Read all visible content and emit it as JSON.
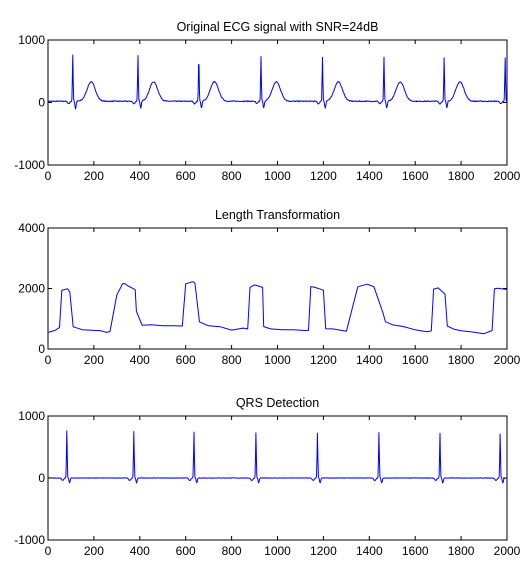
{
  "chart_data": [
    {
      "type": "line",
      "title": "Original ECG signal with SNR=24dB",
      "xlabel": "",
      "ylabel": "",
      "xlim": [
        0,
        2000
      ],
      "ylim": [
        -1000,
        1000
      ],
      "xticks": [
        "0",
        "200",
        "400",
        "600",
        "800",
        "1000",
        "1200",
        "1400",
        "1600",
        "1800",
        "2000"
      ],
      "yticks": [
        "-1000",
        "0",
        "1000"
      ],
      "grid": false,
      "line_color": "#0000ff",
      "baseline": 20,
      "beats": [
        {
          "q": 96,
          "r": 108,
          "r_peak": 760,
          "s_min": -100,
          "t": 188,
          "t_peak": 330
        },
        {
          "q": 388,
          "r": 392,
          "r_peak": 750,
          "s_min": -100,
          "t": 460,
          "t_peak": 330
        },
        {
          "q": 652,
          "r": 657,
          "r_peak": 740,
          "s_min": -90,
          "t": 725,
          "t_peak": 330
        },
        {
          "q": 924,
          "r": 928,
          "r_peak": 730,
          "s_min": -90,
          "t": 995,
          "t_peak": 330
        },
        {
          "q": 1192,
          "r": 1196,
          "r_peak": 720,
          "s_min": -90,
          "t": 1265,
          "t_peak": 330
        },
        {
          "q": 1460,
          "r": 1464,
          "r_peak": 730,
          "s_min": -90,
          "t": 1535,
          "t_peak": 330
        },
        {
          "q": 1722,
          "r": 1726,
          "r_peak": 720,
          "s_min": -90,
          "t": 1795,
          "t_peak": 330
        },
        {
          "q": 1988,
          "r": 1992,
          "r_peak": 710,
          "s_min": -90,
          "t": 2060,
          "t_peak": 330
        }
      ]
    },
    {
      "type": "line",
      "title": "Length Transformation",
      "xlabel": "",
      "ylabel": "",
      "xlim": [
        0,
        2000
      ],
      "ylim": [
        0,
        4000
      ],
      "xticks": [
        "0",
        "200",
        "400",
        "600",
        "800",
        "1000",
        "1200",
        "1400",
        "1600",
        "1800",
        "2000"
      ],
      "yticks": [
        "0",
        "2000",
        "4000"
      ],
      "grid": false,
      "line_color": "#0000ff",
      "x": [
        0,
        30,
        50,
        60,
        85,
        95,
        110,
        150,
        200,
        230,
        255,
        270,
        300,
        325,
        335,
        350,
        380,
        385,
        410,
        450,
        500,
        550,
        585,
        600,
        630,
        640,
        660,
        700,
        750,
        800,
        850,
        870,
        880,
        900,
        935,
        940,
        970,
        1020,
        1070,
        1120,
        1135,
        1145,
        1160,
        1200,
        1210,
        1240,
        1300,
        1350,
        1390,
        1400,
        1420,
        1460,
        1470,
        1500,
        1550,
        1600,
        1650,
        1670,
        1680,
        1700,
        1730,
        1740,
        1770,
        1800,
        1850,
        1900,
        1935,
        1945,
        1960,
        2000,
        2005
      ],
      "y": [
        560,
        600,
        700,
        1950,
        2000,
        1900,
        720,
        650,
        620,
        590,
        540,
        570,
        1800,
        2150,
        2150,
        2100,
        1950,
        1250,
        800,
        820,
        780,
        770,
        740,
        2150,
        2220,
        2200,
        900,
        780,
        720,
        640,
        700,
        660,
        2050,
        2100,
        2050,
        750,
        650,
        640,
        620,
        620,
        640,
        2050,
        2050,
        1950,
        650,
        660,
        580,
        2050,
        2150,
        2100,
        2050,
        1200,
        900,
        820,
        740,
        640,
        560,
        600,
        2000,
        2000,
        1800,
        750,
        650,
        600,
        560,
        500,
        600,
        2000,
        2000,
        1950,
        1250
      ]
    },
    {
      "type": "line",
      "title": "QRS Detection",
      "xlabel": "",
      "ylabel": "",
      "xlim": [
        0,
        2000
      ],
      "ylim": [
        -1000,
        1000
      ],
      "xticks": [
        "0",
        "200",
        "400",
        "600",
        "800",
        "1000",
        "1200",
        "1400",
        "1600",
        "1800",
        "2000"
      ],
      "yticks": [
        "-1000",
        "0",
        "1000"
      ],
      "grid": false,
      "line_color": "#0000ff",
      "baseline": 0,
      "beats": [
        {
          "q": 78,
          "r": 82,
          "r_peak": 760,
          "s_min": -80
        },
        {
          "q": 370,
          "r": 374,
          "r_peak": 750,
          "s_min": -80
        },
        {
          "q": 632,
          "r": 636,
          "r_peak": 740,
          "s_min": -80
        },
        {
          "q": 902,
          "r": 906,
          "r_peak": 730,
          "s_min": -80
        },
        {
          "q": 1170,
          "r": 1174,
          "r_peak": 720,
          "s_min": -80
        },
        {
          "q": 1438,
          "r": 1442,
          "r_peak": 730,
          "s_min": -80
        },
        {
          "q": 1704,
          "r": 1708,
          "r_peak": 720,
          "s_min": -80
        },
        {
          "q": 1966,
          "r": 1970,
          "r_peak": 710,
          "s_min": -80
        }
      ]
    }
  ]
}
